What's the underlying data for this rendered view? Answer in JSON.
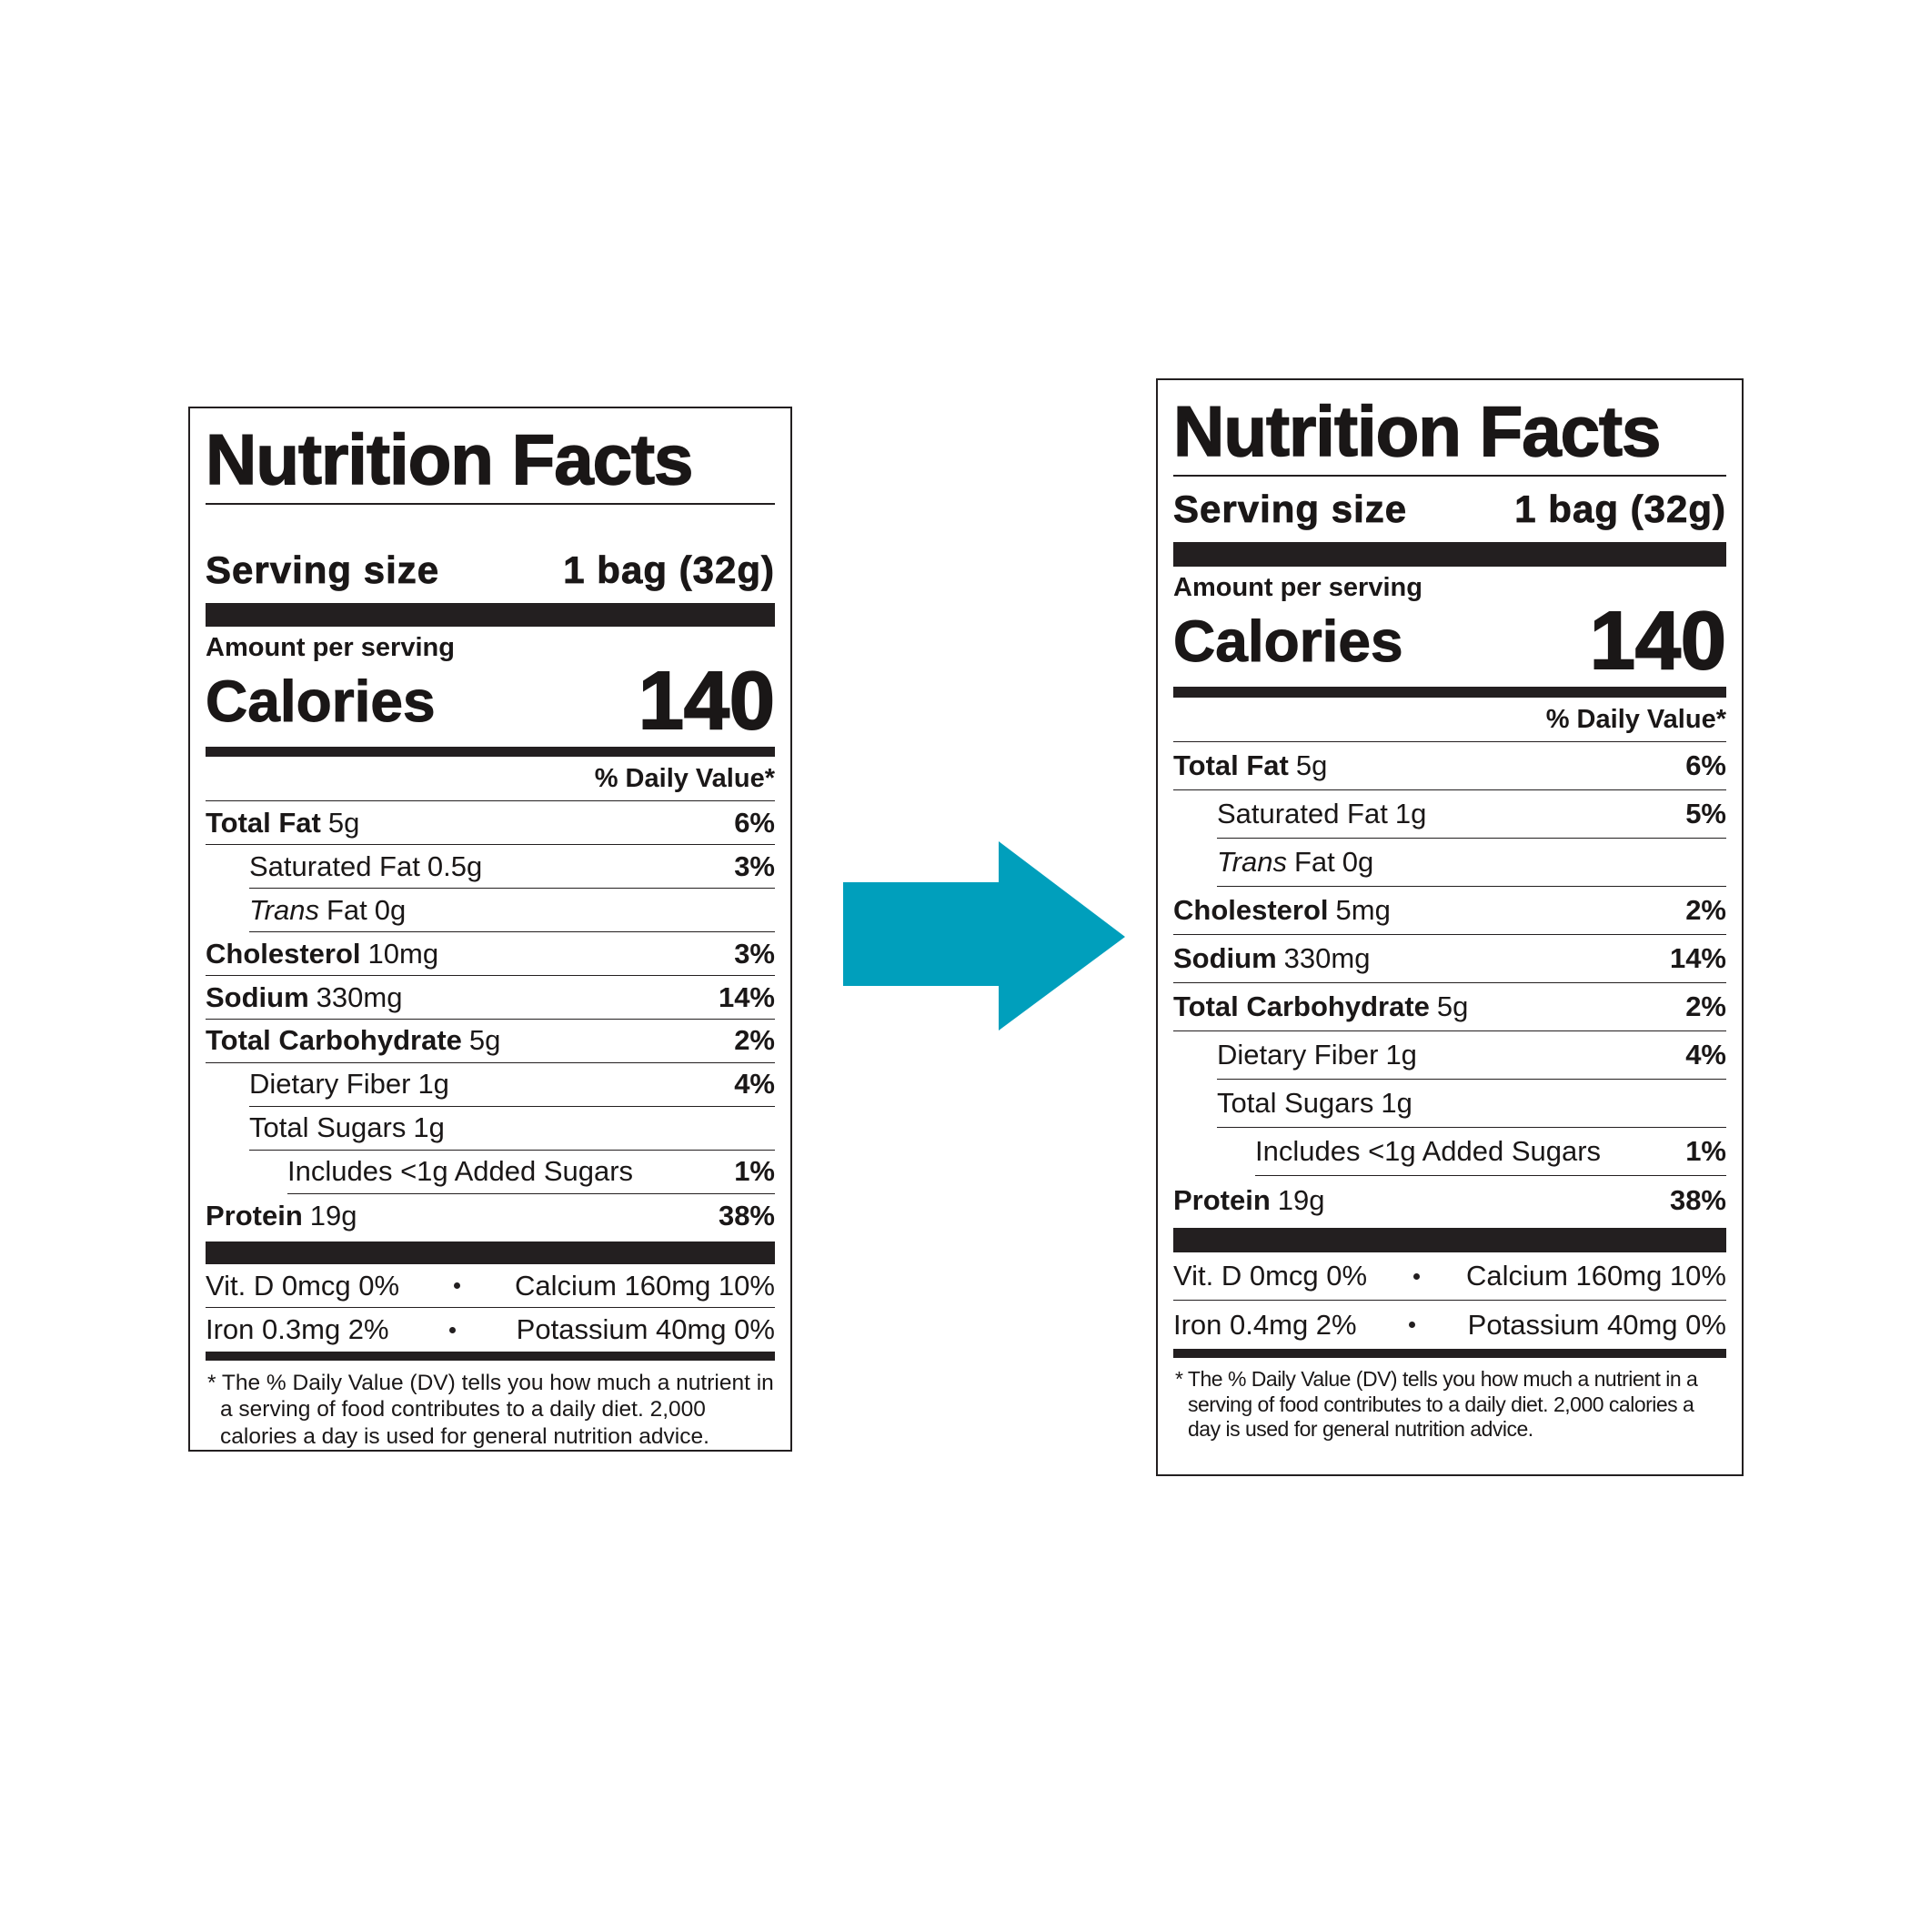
{
  "labels": [
    {
      "title": "Nutrition Facts",
      "serving_size": {
        "label": "Serving size",
        "value": "1 bag (32g)"
      },
      "amount_per_serving": "Amount per serving",
      "calories": {
        "label": "Calories",
        "value": "140"
      },
      "daily_value_header": "% Daily Value*",
      "nutrients": [
        {
          "name": "Total Fat",
          "amount": "5g",
          "dv": "6%"
        },
        {
          "name": "Saturated Fat",
          "amount": "0.5g",
          "dv": "3%"
        },
        {
          "name_italic": "Trans",
          "name": "Fat",
          "amount": "0g"
        },
        {
          "name": "Cholesterol",
          "amount": "10mg",
          "dv": "3%"
        },
        {
          "name": "Sodium",
          "amount": "330mg",
          "dv": "14%"
        },
        {
          "name": "Total Carbohydrate",
          "amount": "5g",
          "dv": "2%"
        },
        {
          "name": "Dietary Fiber",
          "amount": "1g",
          "dv": "4%"
        },
        {
          "name": "Total Sugars",
          "amount": "1g"
        },
        {
          "name": "Includes <1g Added Sugars",
          "dv": "1%"
        },
        {
          "name": "Protein",
          "amount": "19g",
          "dv": "38%"
        }
      ],
      "vitamins": [
        [
          "Vit. D 0mcg 0%",
          "Calcium 160mg 10%"
        ],
        [
          "Iron 0.3mg 2%",
          "Potassium 40mg 0%"
        ]
      ],
      "footnote": "* The % Daily Value (DV) tells you how much a nutrient in a serving of food contributes to a daily diet. 2,000 calories a day is used for general nutrition advice."
    },
    {
      "title": "Nutrition Facts",
      "serving_size": {
        "label": "Serving size",
        "value": "1 bag (32g)"
      },
      "amount_per_serving": "Amount per serving",
      "calories": {
        "label": "Calories",
        "value": "140"
      },
      "daily_value_header": "% Daily Value*",
      "nutrients": [
        {
          "name": "Total Fat",
          "amount": "5g",
          "dv": "6%"
        },
        {
          "name": "Saturated Fat",
          "amount": "1g",
          "dv": "5%"
        },
        {
          "name_italic": "Trans",
          "name": "Fat",
          "amount": "0g"
        },
        {
          "name": "Cholesterol",
          "amount": "5mg",
          "dv": "2%"
        },
        {
          "name": "Sodium",
          "amount": "330mg",
          "dv": "14%"
        },
        {
          "name": "Total Carbohydrate",
          "amount": "5g",
          "dv": "2%"
        },
        {
          "name": "Dietary Fiber",
          "amount": "1g",
          "dv": "4%"
        },
        {
          "name": "Total Sugars",
          "amount": "1g"
        },
        {
          "name": "Includes <1g Added Sugars",
          "dv": "1%"
        },
        {
          "name": "Protein",
          "amount": "19g",
          "dv": "38%"
        }
      ],
      "vitamins": [
        [
          "Vit. D 0mcg 0%",
          "Calcium 160mg 10%"
        ],
        [
          "Iron 0.4mg 2%",
          "Potassium 40mg 0%"
        ]
      ],
      "footnote": "* The % Daily Value (DV) tells you how much a nutrient in a serving of food contributes to a daily diet. 2,000 calories a day is used for general nutrition advice."
    }
  ]
}
